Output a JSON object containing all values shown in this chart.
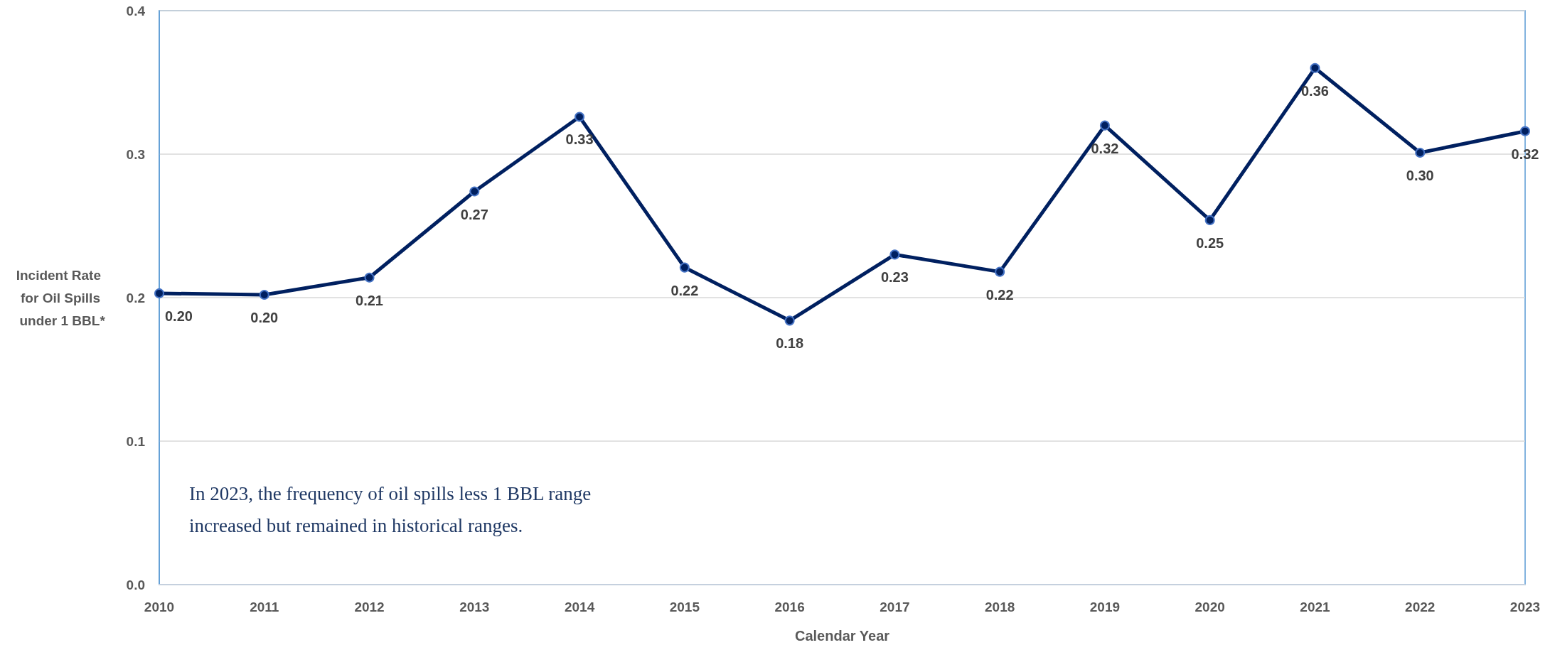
{
  "chart_data": {
    "type": "line",
    "categories": [
      "2010",
      "2011",
      "2012",
      "2013",
      "2014",
      "2015",
      "2016",
      "2017",
      "2018",
      "2019",
      "2020",
      "2021",
      "2022",
      "2023"
    ],
    "series": [
      {
        "color": "#002060",
        "values": [
          0.203,
          0.202,
          0.214,
          0.274,
          0.326,
          0.221,
          0.184,
          0.23,
          0.218,
          0.32,
          0.254,
          0.36,
          0.301,
          0.316
        ],
        "value_labels": [
          "0.20",
          "0.20",
          "0.21",
          "0.27",
          "0.33",
          "0.22",
          "0.18",
          "0.23",
          "0.22",
          "0.32",
          "0.25",
          "0.36",
          "0.30",
          "0.32"
        ]
      }
    ],
    "xlabel": "Calendar Year",
    "ylabel": "Incident Rate for Oil Spills under 1 BBL*",
    "ylim": [
      0,
      0.4
    ],
    "yticks": [
      {
        "value": 0,
        "label": "0.0"
      },
      0.1,
      0.2,
      0.3,
      0.4
    ],
    "grid": "y",
    "marker": "circle",
    "line_style": "solid",
    "annotations": [
      "In 2023, the frequency of oil spills less 1 BBL range increased but remained in historical ranges."
    ]
  }
}
